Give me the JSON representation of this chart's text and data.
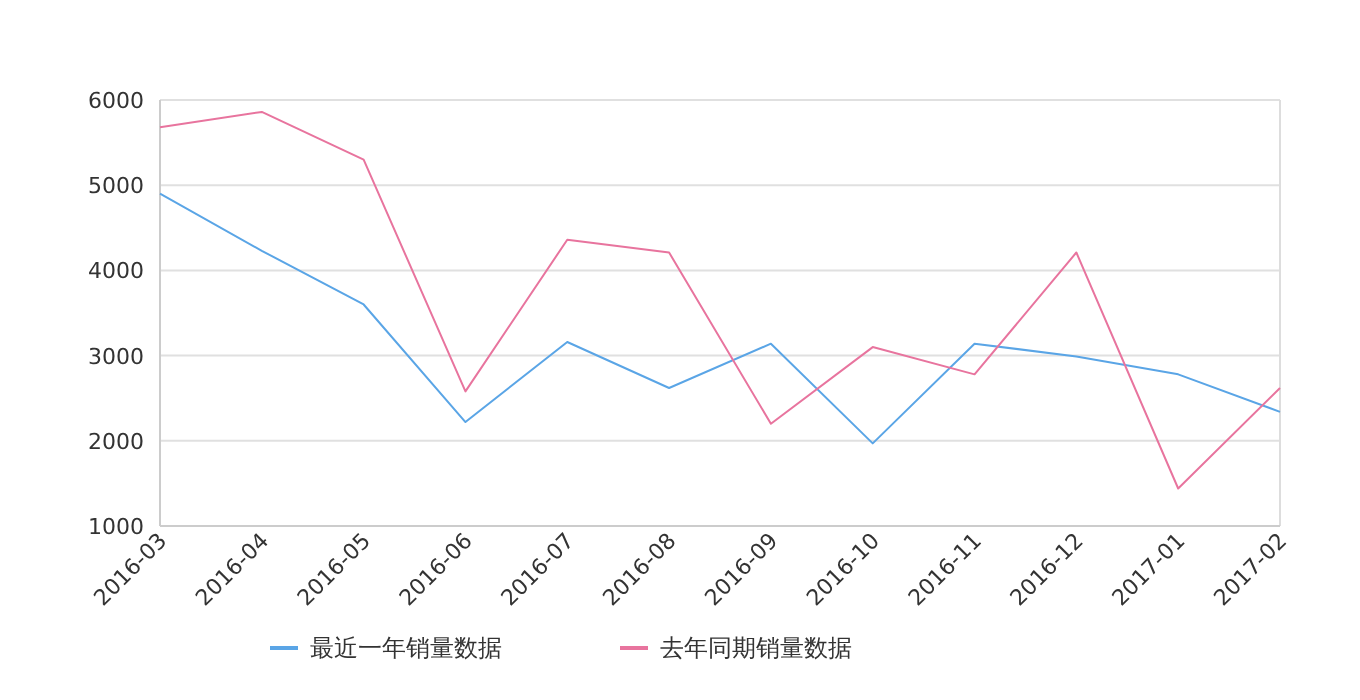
{
  "chart_data": {
    "type": "line",
    "categories": [
      "2016-03",
      "2016-04",
      "2016-05",
      "2016-06",
      "2016-07",
      "2016-08",
      "2016-09",
      "2016-10",
      "2016-11",
      "2016-12",
      "2017-01",
      "2017-02"
    ],
    "series": [
      {
        "name": "最近一年销量数据",
        "color": "#5aa5e6",
        "values": [
          4900,
          4230,
          3600,
          2220,
          3160,
          2620,
          3140,
          1970,
          3140,
          2990,
          2780,
          2340
        ]
      },
      {
        "name": "去年同期销量数据",
        "color": "#e8749e",
        "values": [
          5680,
          5860,
          5300,
          2580,
          4360,
          4210,
          2200,
          3100,
          2780,
          4210,
          1440,
          2620
        ]
      }
    ],
    "ylim": [
      1000,
      6000
    ],
    "yticks": [
      1000,
      2000,
      3000,
      4000,
      5000,
      6000
    ],
    "grid": "y",
    "legend": "bottom"
  }
}
